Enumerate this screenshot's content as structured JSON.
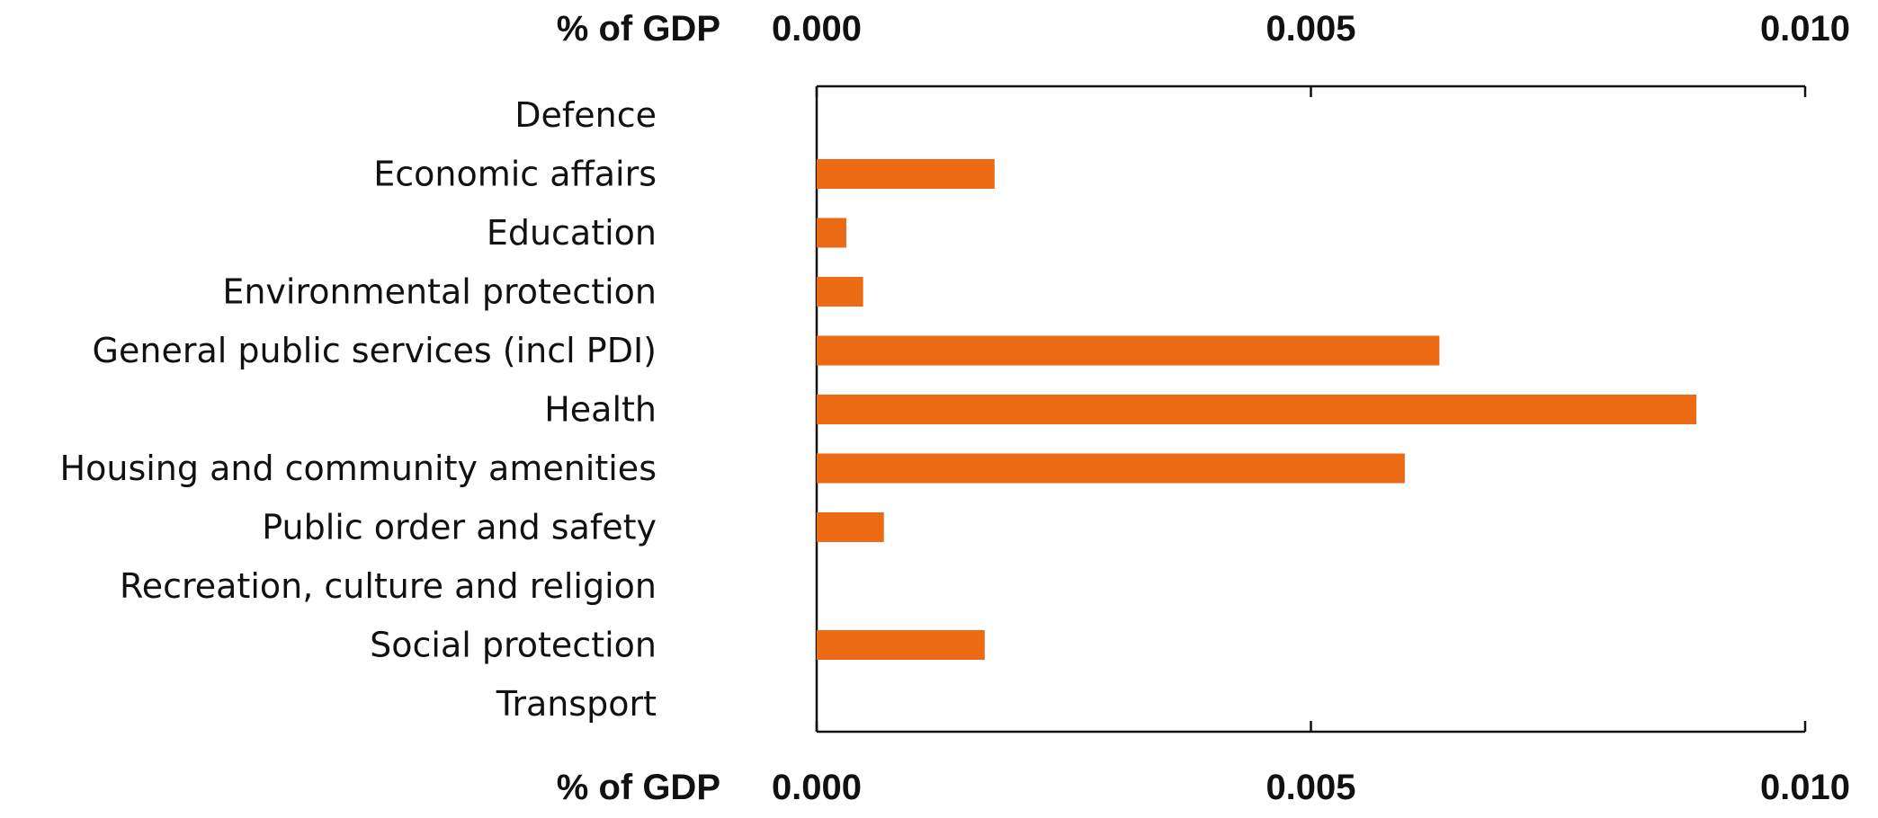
{
  "chart_data": {
    "type": "bar",
    "orientation": "horizontal",
    "top_axis_title": "% of GDP",
    "bottom_axis_title": "% of GDP",
    "xlim": [
      0,
      0.01
    ],
    "ticks": [
      "0.000",
      "0.005",
      "0.010"
    ],
    "tick_values": [
      0,
      0.005,
      0.01
    ],
    "grid": false,
    "legend": "none",
    "bar_color": "#ED6A14",
    "categories": [
      "Defence",
      "Economic affairs",
      "Education",
      "Environmental protection",
      "General public services (incl PDI)",
      "Health",
      "Housing and community amenities",
      "Public order and safety",
      "Recreation, culture and religion",
      "Social protection",
      "Transport"
    ],
    "values": [
      0,
      0.0018,
      0.0003,
      0.00047,
      0.0063,
      0.0089,
      0.00595,
      0.00068,
      0,
      0.0017,
      0
    ]
  }
}
